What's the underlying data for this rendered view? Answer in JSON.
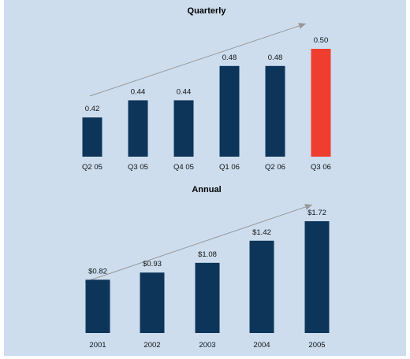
{
  "chart_data": [
    {
      "type": "bar",
      "title": "Quarterly",
      "categories": [
        "Q2 05",
        "Q3 05",
        "Q4 05",
        "Q1 06",
        "Q2 06",
        "Q3 06"
      ],
      "values": [
        0.42,
        0.44,
        0.44,
        0.48,
        0.48,
        0.5
      ],
      "value_labels": [
        "0.42",
        "0.44",
        "0.44",
        "0.48",
        "0.48",
        "0.50"
      ],
      "ylim": [
        0.4,
        0.5
      ],
      "grid": false,
      "bar_color": "#0d3559",
      "highlight_color": "#ef3e2f",
      "highlight_index": 5,
      "trend_arrow": true
    },
    {
      "type": "bar",
      "title": "Annual",
      "categories": [
        "2001",
        "2002",
        "2003",
        "2004",
        "2005"
      ],
      "values": [
        0.82,
        0.93,
        1.08,
        1.42,
        1.72
      ],
      "value_labels": [
        "$0.82",
        "$0.93",
        "$1.08",
        "$1.42",
        "$1.72"
      ],
      "ylim": [
        0.0,
        1.72
      ],
      "grid": false,
      "bar_color": "#0d3559",
      "trend_arrow": true
    }
  ],
  "colors": {
    "background": "#cdddee",
    "arrow": "#999999"
  }
}
